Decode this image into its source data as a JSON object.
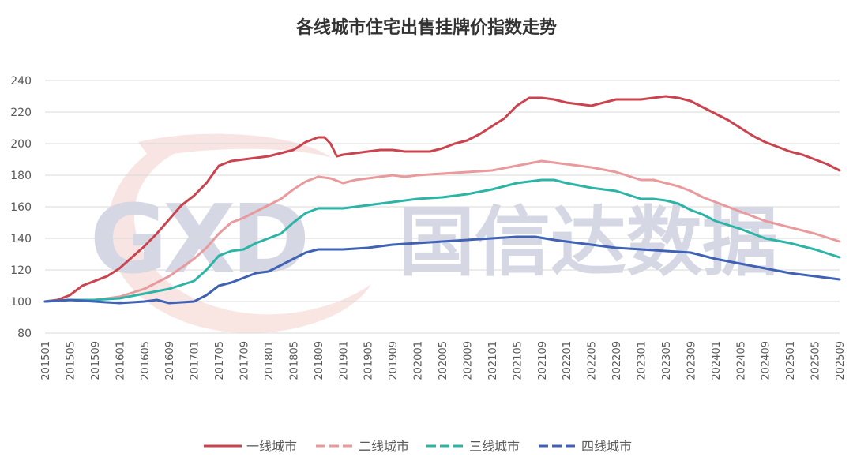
{
  "chart_data": {
    "type": "line",
    "title": "各线城市住宅出售挂牌价指数走势",
    "xlabel": "",
    "ylabel": "",
    "ylim": [
      80,
      240
    ],
    "yticks": [
      80,
      100,
      120,
      140,
      160,
      180,
      200,
      220,
      240
    ],
    "x_range": [
      "201501",
      "202509"
    ],
    "xtick_labels": [
      "201501",
      "201505",
      "201509",
      "201601",
      "201605",
      "201609",
      "201701",
      "201705",
      "201709",
      "201801",
      "201805",
      "201809",
      "201901",
      "201905",
      "201909",
      "202001",
      "202005",
      "202009",
      "202101",
      "202105",
      "202109",
      "202201",
      "202205",
      "202209",
      "202301",
      "202305",
      "202309",
      "202401",
      "202405",
      "202409",
      "202501",
      "202505",
      "202509"
    ],
    "grid": "horizontal",
    "legend_position": "bottom",
    "series": [
      {
        "name": "一线城市",
        "color": "#C9444F",
        "dash": "solid",
        "points": [
          [
            "201501",
            100
          ],
          [
            "201503",
            101
          ],
          [
            "201505",
            104
          ],
          [
            "201507",
            110
          ],
          [
            "201509",
            113
          ],
          [
            "201511",
            116
          ],
          [
            "201601",
            121
          ],
          [
            "201603",
            128
          ],
          [
            "201605",
            135
          ],
          [
            "201607",
            143
          ],
          [
            "201609",
            152
          ],
          [
            "201611",
            161
          ],
          [
            "201701",
            167
          ],
          [
            "201703",
            175
          ],
          [
            "201705",
            186
          ],
          [
            "201707",
            189
          ],
          [
            "201709",
            190
          ],
          [
            "201711",
            191
          ],
          [
            "201801",
            192
          ],
          [
            "201803",
            194
          ],
          [
            "201805",
            196
          ],
          [
            "201807",
            201
          ],
          [
            "201809",
            204
          ],
          [
            "201810",
            204
          ],
          [
            "201811",
            200
          ],
          [
            "201812",
            192
          ],
          [
            "201901",
            193
          ],
          [
            "201903",
            194
          ],
          [
            "201905",
            195
          ],
          [
            "201907",
            196
          ],
          [
            "201909",
            196
          ],
          [
            "201911",
            195
          ],
          [
            "202001",
            195
          ],
          [
            "202003",
            195
          ],
          [
            "202005",
            197
          ],
          [
            "202007",
            200
          ],
          [
            "202009",
            202
          ],
          [
            "202011",
            206
          ],
          [
            "202101",
            211
          ],
          [
            "202103",
            216
          ],
          [
            "202105",
            224
          ],
          [
            "202107",
            229
          ],
          [
            "202109",
            229
          ],
          [
            "202111",
            228
          ],
          [
            "202201",
            226
          ],
          [
            "202203",
            225
          ],
          [
            "202205",
            224
          ],
          [
            "202207",
            226
          ],
          [
            "202209",
            228
          ],
          [
            "202211",
            228
          ],
          [
            "202301",
            228
          ],
          [
            "202303",
            229
          ],
          [
            "202305",
            230
          ],
          [
            "202307",
            229
          ],
          [
            "202309",
            227
          ],
          [
            "202311",
            223
          ],
          [
            "202401",
            219
          ],
          [
            "202403",
            215
          ],
          [
            "202405",
            210
          ],
          [
            "202407",
            205
          ],
          [
            "202409",
            201
          ],
          [
            "202411",
            198
          ],
          [
            "202501",
            195
          ],
          [
            "202503",
            193
          ],
          [
            "202505",
            190
          ],
          [
            "202507",
            187
          ],
          [
            "202509",
            183
          ]
        ]
      },
      {
        "name": "二线城市",
        "color": "#E89A9D",
        "dash": "dashed",
        "points": [
          [
            "201501",
            100
          ],
          [
            "201505",
            101
          ],
          [
            "201509",
            101
          ],
          [
            "201601",
            103
          ],
          [
            "201605",
            108
          ],
          [
            "201609",
            116
          ],
          [
            "201701",
            127
          ],
          [
            "201703",
            134
          ],
          [
            "201705",
            143
          ],
          [
            "201707",
            150
          ],
          [
            "201709",
            153
          ],
          [
            "201711",
            157
          ],
          [
            "201801",
            161
          ],
          [
            "201803",
            165
          ],
          [
            "201805",
            171
          ],
          [
            "201807",
            176
          ],
          [
            "201809",
            179
          ],
          [
            "201811",
            178
          ],
          [
            "201901",
            175
          ],
          [
            "201903",
            177
          ],
          [
            "201905",
            178
          ],
          [
            "201907",
            179
          ],
          [
            "201909",
            180
          ],
          [
            "201911",
            179
          ],
          [
            "202001",
            180
          ],
          [
            "202005",
            181
          ],
          [
            "202009",
            182
          ],
          [
            "202101",
            183
          ],
          [
            "202105",
            186
          ],
          [
            "202109",
            189
          ],
          [
            "202111",
            188
          ],
          [
            "202201",
            187
          ],
          [
            "202205",
            185
          ],
          [
            "202209",
            182
          ],
          [
            "202301",
            177
          ],
          [
            "202303",
            177
          ],
          [
            "202305",
            175
          ],
          [
            "202307",
            173
          ],
          [
            "202309",
            170
          ],
          [
            "202311",
            166
          ],
          [
            "202401",
            163
          ],
          [
            "202405",
            157
          ],
          [
            "202409",
            151
          ],
          [
            "202501",
            147
          ],
          [
            "202505",
            143
          ],
          [
            "202509",
            138
          ]
        ]
      },
      {
        "name": "三线城市",
        "color": "#2CB4A6",
        "dash": "dashed",
        "points": [
          [
            "201501",
            100
          ],
          [
            "201505",
            101
          ],
          [
            "201509",
            101
          ],
          [
            "201601",
            102
          ],
          [
            "201605",
            105
          ],
          [
            "201609",
            108
          ],
          [
            "201701",
            113
          ],
          [
            "201703",
            120
          ],
          [
            "201705",
            129
          ],
          [
            "201707",
            132
          ],
          [
            "201709",
            133
          ],
          [
            "201711",
            137
          ],
          [
            "201801",
            140
          ],
          [
            "201803",
            143
          ],
          [
            "201805",
            150
          ],
          [
            "201807",
            156
          ],
          [
            "201809",
            159
          ],
          [
            "201811",
            159
          ],
          [
            "201901",
            159
          ],
          [
            "201905",
            161
          ],
          [
            "201909",
            163
          ],
          [
            "202001",
            165
          ],
          [
            "202005",
            166
          ],
          [
            "202009",
            168
          ],
          [
            "202101",
            171
          ],
          [
            "202105",
            175
          ],
          [
            "202109",
            177
          ],
          [
            "202111",
            177
          ],
          [
            "202201",
            175
          ],
          [
            "202205",
            172
          ],
          [
            "202209",
            170
          ],
          [
            "202301",
            165
          ],
          [
            "202303",
            165
          ],
          [
            "202305",
            164
          ],
          [
            "202307",
            162
          ],
          [
            "202309",
            158
          ],
          [
            "202311",
            155
          ],
          [
            "202401",
            151
          ],
          [
            "202405",
            146
          ],
          [
            "202409",
            140
          ],
          [
            "202501",
            137
          ],
          [
            "202505",
            133
          ],
          [
            "202509",
            128
          ]
        ]
      },
      {
        "name": "四线城市",
        "color": "#3F62B5",
        "dash": "dashed",
        "points": [
          [
            "201501",
            100
          ],
          [
            "201505",
            101
          ],
          [
            "201509",
            100
          ],
          [
            "201601",
            99
          ],
          [
            "201605",
            100
          ],
          [
            "201607",
            101
          ],
          [
            "201609",
            99
          ],
          [
            "201701",
            100
          ],
          [
            "201703",
            104
          ],
          [
            "201705",
            110
          ],
          [
            "201707",
            112
          ],
          [
            "201709",
            115
          ],
          [
            "201711",
            118
          ],
          [
            "201801",
            119
          ],
          [
            "201803",
            123
          ],
          [
            "201805",
            127
          ],
          [
            "201807",
            131
          ],
          [
            "201809",
            133
          ],
          [
            "201811",
            133
          ],
          [
            "201901",
            133
          ],
          [
            "201905",
            134
          ],
          [
            "201909",
            136
          ],
          [
            "202001",
            137
          ],
          [
            "202005",
            138
          ],
          [
            "202009",
            139
          ],
          [
            "202101",
            140
          ],
          [
            "202105",
            141
          ],
          [
            "202108",
            141
          ],
          [
            "202111",
            139
          ],
          [
            "202201",
            138
          ],
          [
            "202205",
            136
          ],
          [
            "202209",
            134
          ],
          [
            "202301",
            133
          ],
          [
            "202305",
            132
          ],
          [
            "202309",
            131
          ],
          [
            "202401",
            127
          ],
          [
            "202405",
            124
          ],
          [
            "202409",
            121
          ],
          [
            "202501",
            118
          ],
          [
            "202505",
            116
          ],
          [
            "202509",
            114
          ]
        ]
      }
    ]
  },
  "watermark": {
    "logo_text": "GXD",
    "company_text": "国信达数据",
    "logo_color": "#B4B8CF",
    "swoosh_color": "#F4CFCB"
  }
}
